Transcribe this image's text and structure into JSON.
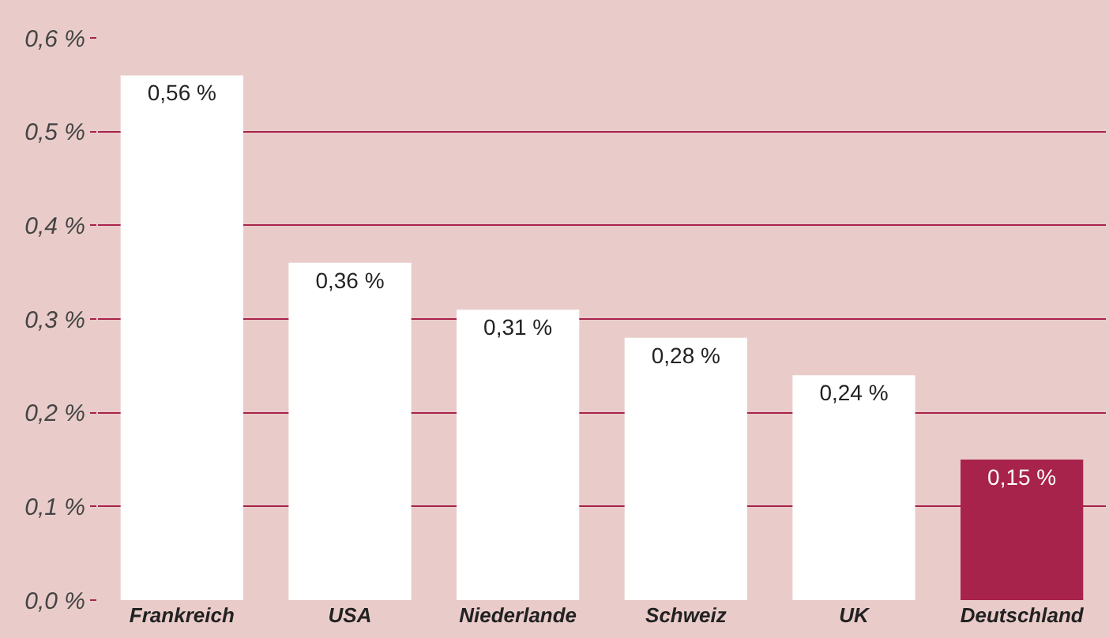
{
  "chart_data": {
    "type": "bar",
    "categories": [
      "Frankreich",
      "USA",
      "Niederlande",
      "Schweiz",
      "UK",
      "Deutschland"
    ],
    "values": [
      0.56,
      0.36,
      0.31,
      0.28,
      0.24,
      0.15
    ],
    "colors": [
      "#ffffff",
      "#ffffff",
      "#ffffff",
      "#ffffff",
      "#ffffff",
      "#a8234b"
    ],
    "value_labels": [
      "0,56 %",
      "0,36 %",
      "0,31 %",
      "0,28 %",
      "0,24 %",
      "0,15 %"
    ],
    "ylim": [
      0,
      0.6
    ],
    "yticks": [
      {
        "value": 0,
        "label": "0,0 %"
      },
      {
        "value": 0.1,
        "label": "0,1 %"
      },
      {
        "value": 0.2,
        "label": "0,2 %"
      },
      {
        "value": 0.3,
        "label": "0,3 %"
      },
      {
        "value": 0.4,
        "label": "0,4 %"
      },
      {
        "value": 0.5,
        "label": "0,5 %"
      },
      {
        "value": 0.6,
        "label": "0,6 %"
      }
    ],
    "grid": "y",
    "legend": false
  }
}
